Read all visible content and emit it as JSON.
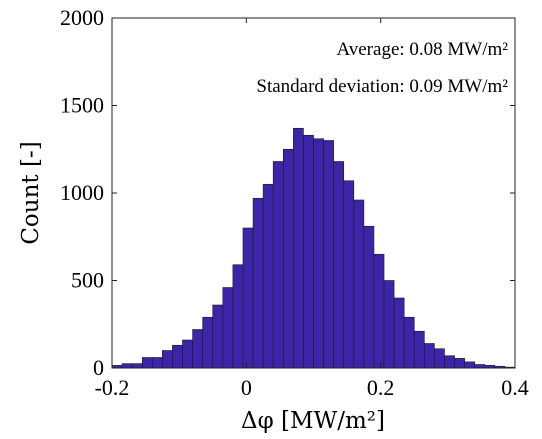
{
  "chart_data": {
    "type": "bar",
    "subtype": "histogram",
    "xlabel": "Δφ [MW/m²]",
    "ylabel": "Count [-]",
    "xlim": [
      -0.2,
      0.4
    ],
    "ylim": [
      0,
      2000
    ],
    "xticks": [
      "-0.2",
      "0",
      "0.2",
      "0.4"
    ],
    "yticks": [
      "0",
      "500",
      "1000",
      "1500",
      "2000"
    ],
    "bin_width": 0.015,
    "bin_start": -0.2,
    "values": [
      15,
      25,
      25,
      60,
      60,
      100,
      130,
      160,
      220,
      290,
      360,
      460,
      590,
      800,
      970,
      1050,
      1180,
      1250,
      1370,
      1330,
      1310,
      1300,
      1180,
      1070,
      960,
      810,
      650,
      500,
      400,
      290,
      210,
      140,
      110,
      70,
      55,
      35,
      20,
      15,
      10,
      5
    ],
    "bar_color": "#3d25aa",
    "grid": false,
    "annotations": [
      "Average: 0.08 MW/m²",
      "Standard deviation: 0.09 MW/m²"
    ]
  }
}
